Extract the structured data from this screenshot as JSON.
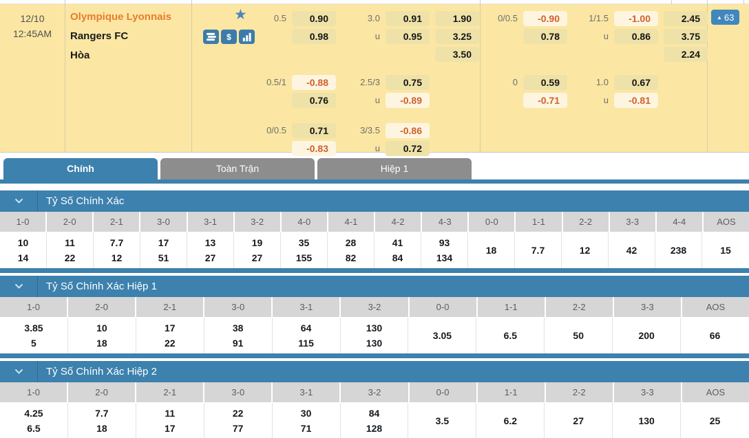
{
  "match": {
    "date": "12/10",
    "time": "12:45AM",
    "home_team": "Olympique Lyonnais",
    "away_team": "Rangers FC",
    "draw_label": "Hòa",
    "star_glyph": "★",
    "dollar_symbol": "$",
    "under_label": "u",
    "badge": {
      "arrow": "▲",
      "value": "63"
    },
    "odds": {
      "left": [
        {
          "line": "0.5",
          "home": "0.90",
          "away": "0.98",
          "ou_line": "3.0",
          "over": "0.91",
          "under": "0.95",
          "x12": [
            "1.90",
            "3.25",
            "3.50"
          ]
        },
        {
          "line": "0.5/1",
          "home": "-0.88",
          "away": "0.76",
          "ou_line": "2.5/3",
          "over": "0.75",
          "under": "-0.89"
        },
        {
          "line": "0/0.5",
          "home": "0.71",
          "away": "-0.83",
          "ou_line": "3/3.5",
          "over": "-0.86",
          "under": "0.72"
        }
      ],
      "right": [
        {
          "line": "0/0.5",
          "home": "-0.90",
          "away": "0.78",
          "ou_line": "1/1.5",
          "over": "-1.00",
          "under": "0.86",
          "x12": [
            "2.45",
            "3.75",
            "2.24"
          ]
        },
        {
          "line": "0",
          "home": "0.59",
          "away": "-0.71",
          "ou_line": "1.0",
          "over": "0.67",
          "under": "-0.81"
        }
      ]
    }
  },
  "tabs": [
    {
      "label": "Chính",
      "active": true
    },
    {
      "label": "Toàn Trận",
      "active": false
    },
    {
      "label": "Hiệp 1",
      "active": false
    }
  ],
  "sections": [
    {
      "title": "Tỷ Số Chính Xác",
      "headers": [
        "1-0",
        "2-0",
        "2-1",
        "3-0",
        "3-1",
        "3-2",
        "4-0",
        "4-1",
        "4-2",
        "4-3",
        "0-0",
        "1-1",
        "2-2",
        "3-3",
        "4-4",
        "AOS"
      ],
      "pairs": [
        [
          "10",
          "14"
        ],
        [
          "11",
          "22"
        ],
        [
          "7.7",
          "12"
        ],
        [
          "17",
          "51"
        ],
        [
          "13",
          "27"
        ],
        [
          "19",
          "27"
        ],
        [
          "35",
          "155"
        ],
        [
          "28",
          "82"
        ],
        [
          "41",
          "84"
        ],
        [
          "93",
          "134"
        ]
      ],
      "singles": [
        "18",
        "7.7",
        "12",
        "42",
        "238",
        "15"
      ]
    },
    {
      "title": "Tỷ Số Chính Xác Hiệp 1",
      "headers": [
        "1-0",
        "2-0",
        "2-1",
        "3-0",
        "3-1",
        "3-2",
        "0-0",
        "1-1",
        "2-2",
        "3-3",
        "AOS"
      ],
      "pairs": [
        [
          "3.85",
          "5"
        ],
        [
          "10",
          "18"
        ],
        [
          "17",
          "22"
        ],
        [
          "38",
          "91"
        ],
        [
          "64",
          "115"
        ],
        [
          "130",
          "130"
        ]
      ],
      "singles": [
        "3.05",
        "6.5",
        "50",
        "200",
        "66"
      ]
    },
    {
      "title": "Tỷ Số Chính Xác Hiệp 2",
      "headers": [
        "1-0",
        "2-0",
        "2-1",
        "3-0",
        "3-1",
        "3-2",
        "0-0",
        "1-1",
        "2-2",
        "3-3",
        "AOS"
      ],
      "pairs": [
        [
          "4.25",
          "6.5"
        ],
        [
          "7.7",
          "18"
        ],
        [
          "11",
          "17"
        ],
        [
          "22",
          "77"
        ],
        [
          "30",
          "71"
        ],
        [
          "84",
          "128"
        ]
      ],
      "singles": [
        "3.5",
        "6.2",
        "27",
        "130",
        "25"
      ]
    }
  ],
  "colors": {
    "accent_blue": "#3d81ae",
    "badge_blue": "#4187bd",
    "panel_yellow": "#fbe7a3",
    "pill_yellow": "#efe2a8",
    "pill_negative_bg": "#fdf5df",
    "negative_orange": "#d0602f",
    "home_team_orange": "#e97b2f",
    "inactive_tab_gray": "#8d8d8d",
    "table_header_gray": "#d6d6d6"
  }
}
